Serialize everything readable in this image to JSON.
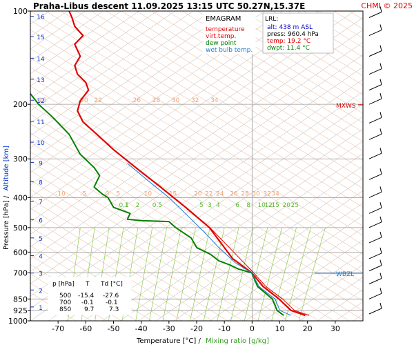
{
  "header": {
    "title": "Praha-Libus   descent   11.09.2025 13:15 UTC  50.27N,15.37E",
    "copyright": "CHMI © 2025"
  },
  "legend": {
    "title": "EMAGRAM",
    "items": [
      {
        "label": "temperature",
        "color": "#e00000"
      },
      {
        "label": "virt.temp.",
        "color": "#e00000"
      },
      {
        "label": "dew point",
        "color": "#008000"
      },
      {
        "label": "wet bulb temp.",
        "color": "#1e7bd0"
      }
    ]
  },
  "lrl": {
    "title": "LRL:",
    "alt": "alt: 438 m ASL",
    "press": "press: 960.4 hPa",
    "temp": "temp: 19.2 °C",
    "dwpt": "dwpt: 11.4 °C",
    "alt_color": "#0000cc",
    "temp_color": "#e00000",
    "dwpt_color": "#008000"
  },
  "levels_table": {
    "headers": [
      "p [hPa]",
      "T",
      "Td [°C]"
    ],
    "rows": [
      [
        "500",
        "-15.4",
        "-27.6"
      ],
      [
        "700",
        "-0.1",
        "-0.1"
      ],
      [
        "850",
        "9.7",
        "7.3"
      ]
    ]
  },
  "markers": {
    "mxws": "MXWS",
    "wbzl": "WBZL"
  },
  "axes": {
    "xlabel_prefix": "Temperature [°C]  /",
    "xlabel_mixing": "Mixing ratio [g/kg]",
    "ylabel_prefix": "Pressure [hPa]  /",
    "ylabel_alt": "Altitude [km]"
  },
  "chart_data": {
    "type": "line",
    "title": "Praha-Libus   descent   11.09.2025 13:15 UTC  50.27N,15.37E",
    "xlabel": "Temperature [°C]  /  Mixing ratio [g/kg]",
    "ylabel": "Pressure [hPa]  /  Altitude [km]",
    "xlim": [
      -80,
      40
    ],
    "ylim": [
      1000,
      100
    ],
    "yscale": "log",
    "x_ticks": [
      -70,
      -60,
      -50,
      -40,
      -30,
      -20,
      -10,
      0,
      10,
      20,
      30
    ],
    "pressure_ticks": [
      100,
      200,
      300,
      400,
      500,
      600,
      700,
      850,
      925,
      1000
    ],
    "altitude_ticks": [
      {
        "km": 1,
        "p": 902
      },
      {
        "km": 2,
        "p": 795
      },
      {
        "km": 3,
        "p": 701
      },
      {
        "km": 4,
        "p": 616
      },
      {
        "km": 5,
        "p": 540
      },
      {
        "km": 6,
        "p": 472
      },
      {
        "km": 7,
        "p": 411
      },
      {
        "km": 8,
        "p": 356
      },
      {
        "km": 9,
        "p": 308
      },
      {
        "km": 10,
        "p": 265
      },
      {
        "km": 11,
        "p": 227
      },
      {
        "km": 12,
        "p": 194
      },
      {
        "km": 13,
        "p": 166
      },
      {
        "km": 14,
        "p": 142
      },
      {
        "km": 15,
        "p": 121
      },
      {
        "km": 16,
        "p": 104
      }
    ],
    "mixing_ratio_labels": [
      {
        "label": "0.1",
        "x": -48
      },
      {
        "label": "0.5",
        "x": -36
      },
      {
        "label": "1",
        "x": -46
      },
      {
        "label": "2",
        "x": -42
      },
      {
        "label": "3",
        "x": -16
      },
      {
        "label": "4",
        "x": -13
      },
      {
        "label": "5",
        "x": -19
      },
      {
        "label": "6",
        "x": -6
      },
      {
        "label": "8",
        "x": -2
      },
      {
        "label": "10",
        "x": 2
      },
      {
        "label": "12",
        "x": 4.5
      },
      {
        "label": "15",
        "x": 7
      },
      {
        "label": "20",
        "x": 11
      },
      {
        "label": "25",
        "x": 14
      }
    ],
    "dry_adiabat_labels_200": [
      {
        "label": "15",
        "x": -77
      },
      {
        "label": "20",
        "x": -62
      },
      {
        "label": "22",
        "x": -57
      },
      {
        "label": "26",
        "x": -43
      },
      {
        "label": "28",
        "x": -36
      },
      {
        "label": "30",
        "x": -29
      },
      {
        "label": "32",
        "x": -22
      },
      {
        "label": "34",
        "x": -15
      }
    ],
    "dry_adiabat_labels_400": [
      {
        "label": "-10",
        "x": -71
      },
      {
        "label": "-5",
        "x": -62
      },
      {
        "label": "0",
        "x": -53
      },
      {
        "label": "5",
        "x": -49
      },
      {
        "label": "10",
        "x": -39
      },
      {
        "label": "15",
        "x": -30
      },
      {
        "label": "20",
        "x": -21
      },
      {
        "label": "22",
        "x": -17
      },
      {
        "label": "24",
        "x": -13
      },
      {
        "label": "26",
        "x": -8
      },
      {
        "label": "28",
        "x": -4
      },
      {
        "label": "30",
        "x": 0
      },
      {
        "label": "32",
        "x": 4
      },
      {
        "label": "34",
        "x": 7
      }
    ],
    "series": [
      {
        "name": "temperature",
        "color": "#e00000",
        "points": [
          [
            19.2,
            960.4
          ],
          [
            14,
            925
          ],
          [
            9.7,
            850
          ],
          [
            4,
            775
          ],
          [
            -0.1,
            700
          ],
          [
            -2,
            680
          ],
          [
            -7,
            630
          ],
          [
            -15.4,
            500
          ],
          [
            -24,
            430
          ],
          [
            -33,
            370
          ],
          [
            -42,
            320
          ],
          [
            -50,
            280
          ],
          [
            -56,
            250
          ],
          [
            -61,
            228
          ],
          [
            -63,
            210
          ],
          [
            -62,
            195
          ],
          [
            -59,
            180
          ],
          [
            -60,
            170
          ],
          [
            -63,
            160
          ],
          [
            -64,
            150
          ],
          [
            -62,
            140
          ],
          [
            -64,
            128
          ],
          [
            -61,
            120
          ],
          [
            -64,
            112
          ],
          [
            -65,
            105
          ],
          [
            -66,
            100
          ]
        ]
      },
      {
        "name": "virt.temp.",
        "color": "#e00000",
        "points": [
          [
            20.6,
            960.4
          ],
          [
            15.3,
            925
          ],
          [
            11,
            850
          ],
          [
            5,
            775
          ],
          [
            0.6,
            700
          ],
          [
            -15.2,
            500
          ],
          [
            -33,
            370
          ]
        ]
      },
      {
        "name": "dew point",
        "color": "#008000",
        "points": [
          [
            11.4,
            960.4
          ],
          [
            9,
            925
          ],
          [
            7.3,
            850
          ],
          [
            2,
            775
          ],
          [
            -0.1,
            700
          ],
          [
            -5,
            680
          ],
          [
            -8,
            660
          ],
          [
            -12,
            640
          ],
          [
            -15,
            610
          ],
          [
            -20,
            580
          ],
          [
            -22,
            540
          ],
          [
            -27.6,
            500
          ],
          [
            -30,
            478
          ],
          [
            -40,
            475
          ],
          [
            -45,
            470
          ],
          [
            -44,
            450
          ],
          [
            -50,
            430
          ],
          [
            -52,
            400
          ],
          [
            -54,
            390
          ],
          [
            -57,
            370
          ],
          [
            -55,
            340
          ],
          [
            -57,
            320
          ],
          [
            -62,
            290
          ],
          [
            -66,
            250
          ],
          [
            -72,
            220
          ],
          [
            -77,
            200
          ],
          [
            -81,
            180
          ]
        ]
      },
      {
        "name": "wet bulb temp.",
        "color": "#1e7bd0",
        "points": [
          [
            14,
            960.4
          ],
          [
            10,
            925
          ],
          [
            8.3,
            850
          ],
          [
            2.5,
            775
          ],
          [
            -0.1,
            700
          ],
          [
            -6,
            650
          ],
          [
            -12,
            580
          ],
          [
            -17,
            520
          ],
          [
            -23,
            460
          ],
          [
            -30,
            400
          ],
          [
            -38,
            350
          ],
          [
            -45,
            310
          ]
        ]
      }
    ],
    "wind_barbs_pressure": [
      950,
      850,
      760,
      690,
      630,
      560,
      500,
      450,
      400,
      350,
      300,
      260,
      230,
      200,
      180,
      160,
      140,
      120,
      105
    ],
    "grid": true
  }
}
